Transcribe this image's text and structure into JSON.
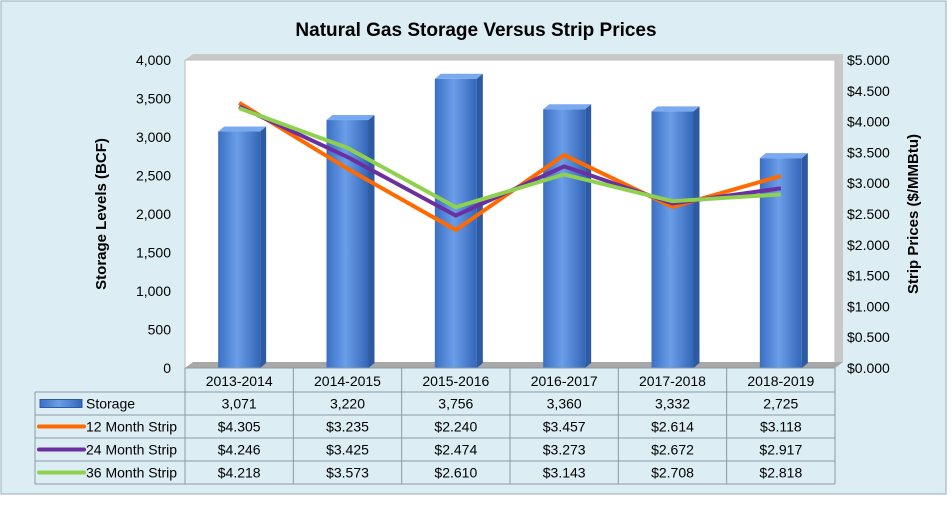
{
  "chart_data": {
    "type": "bar",
    "title": "Natural Gas Storage Versus Strip Prices",
    "ylabel": "Storage Levels (BCF)",
    "y2label": "Strip Prices ($/MMBtu)",
    "ylim": [
      0,
      4000
    ],
    "y2lim": [
      0,
      5
    ],
    "yticks": [
      "0",
      "500",
      "1,000",
      "1,500",
      "2,000",
      "2,500",
      "3,000",
      "3,500",
      "4,000"
    ],
    "y2ticks": [
      "$0.000",
      "$0.500",
      "$1.000",
      "$1.500",
      "$2.000",
      "$2.500",
      "$3.000",
      "$3.500",
      "$4.000",
      "$4.500",
      "$5.000"
    ],
    "categories": [
      "2013-2014",
      "2014-2015",
      "2015-2016",
      "2016-2017",
      "2017-2018",
      "2018-2019"
    ],
    "bar_series": {
      "name": "Storage",
      "values": [
        3071,
        3220,
        3756,
        3360,
        3332,
        2725
      ],
      "labels": [
        "3,071",
        "3,220",
        "3,756",
        "3,360",
        "3,332",
        "2,725"
      ],
      "color": "#4f86d9"
    },
    "line_series": [
      {
        "name": "12 Month Strip",
        "values": [
          4.305,
          3.235,
          2.24,
          3.457,
          2.614,
          3.118
        ],
        "labels": [
          "$4.305",
          "$3.235",
          "$2.240",
          "$3.457",
          "$2.614",
          "$3.118"
        ],
        "color": "#ff6a00"
      },
      {
        "name": "24 Month Strip",
        "values": [
          4.246,
          3.425,
          2.474,
          3.273,
          2.672,
          2.917
        ],
        "labels": [
          "$4.246",
          "$3.425",
          "$2.474",
          "$3.273",
          "$2.672",
          "$2.917"
        ],
        "color": "#6b2fa0"
      },
      {
        "name": "36 Month Strip",
        "values": [
          4.218,
          3.573,
          2.61,
          3.143,
          2.708,
          2.818
        ],
        "labels": [
          "$4.218",
          "$3.573",
          "$2.610",
          "$3.143",
          "$2.708",
          "$2.818"
        ],
        "color": "#8fd14f"
      }
    ],
    "legend": "data-table"
  }
}
